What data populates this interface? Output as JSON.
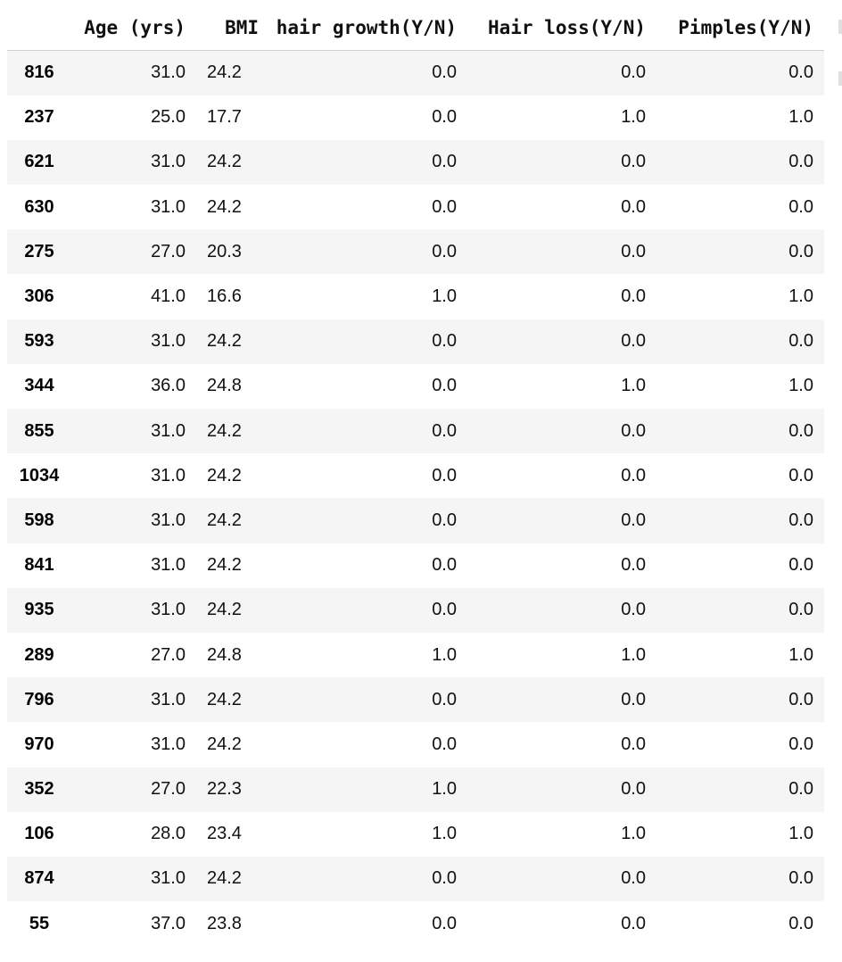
{
  "table": {
    "columns": [
      "",
      "Age (yrs)",
      "BMI",
      "hair growth(Y/N)",
      "Hair loss(Y/N)",
      "Pimples(Y/N)"
    ],
    "rows": [
      {
        "index": "816",
        "age": "31.0",
        "bmi": "24.2",
        "hair_growth": "0.0",
        "hair_loss": "0.0",
        "pimples": "0.0"
      },
      {
        "index": "237",
        "age": "25.0",
        "bmi": "17.7",
        "hair_growth": "0.0",
        "hair_loss": "1.0",
        "pimples": "1.0"
      },
      {
        "index": "621",
        "age": "31.0",
        "bmi": "24.2",
        "hair_growth": "0.0",
        "hair_loss": "0.0",
        "pimples": "0.0"
      },
      {
        "index": "630",
        "age": "31.0",
        "bmi": "24.2",
        "hair_growth": "0.0",
        "hair_loss": "0.0",
        "pimples": "0.0"
      },
      {
        "index": "275",
        "age": "27.0",
        "bmi": "20.3",
        "hair_growth": "0.0",
        "hair_loss": "0.0",
        "pimples": "0.0"
      },
      {
        "index": "306",
        "age": "41.0",
        "bmi": "16.6",
        "hair_growth": "1.0",
        "hair_loss": "0.0",
        "pimples": "1.0"
      },
      {
        "index": "593",
        "age": "31.0",
        "bmi": "24.2",
        "hair_growth": "0.0",
        "hair_loss": "0.0",
        "pimples": "0.0"
      },
      {
        "index": "344",
        "age": "36.0",
        "bmi": "24.8",
        "hair_growth": "0.0",
        "hair_loss": "1.0",
        "pimples": "1.0"
      },
      {
        "index": "855",
        "age": "31.0",
        "bmi": "24.2",
        "hair_growth": "0.0",
        "hair_loss": "0.0",
        "pimples": "0.0"
      },
      {
        "index": "1034",
        "age": "31.0",
        "bmi": "24.2",
        "hair_growth": "0.0",
        "hair_loss": "0.0",
        "pimples": "0.0"
      },
      {
        "index": "598",
        "age": "31.0",
        "bmi": "24.2",
        "hair_growth": "0.0",
        "hair_loss": "0.0",
        "pimples": "0.0"
      },
      {
        "index": "841",
        "age": "31.0",
        "bmi": "24.2",
        "hair_growth": "0.0",
        "hair_loss": "0.0",
        "pimples": "0.0"
      },
      {
        "index": "935",
        "age": "31.0",
        "bmi": "24.2",
        "hair_growth": "0.0",
        "hair_loss": "0.0",
        "pimples": "0.0"
      },
      {
        "index": "289",
        "age": "27.0",
        "bmi": "24.8",
        "hair_growth": "1.0",
        "hair_loss": "1.0",
        "pimples": "1.0"
      },
      {
        "index": "796",
        "age": "31.0",
        "bmi": "24.2",
        "hair_growth": "0.0",
        "hair_loss": "0.0",
        "pimples": "0.0"
      },
      {
        "index": "970",
        "age": "31.0",
        "bmi": "24.2",
        "hair_growth": "0.0",
        "hair_loss": "0.0",
        "pimples": "0.0"
      },
      {
        "index": "352",
        "age": "27.0",
        "bmi": "22.3",
        "hair_growth": "1.0",
        "hair_loss": "0.0",
        "pimples": "0.0"
      },
      {
        "index": "106",
        "age": "28.0",
        "bmi": "23.4",
        "hair_growth": "1.0",
        "hair_loss": "1.0",
        "pimples": "1.0"
      },
      {
        "index": "874",
        "age": "31.0",
        "bmi": "24.2",
        "hair_growth": "0.0",
        "hair_loss": "0.0",
        "pimples": "0.0"
      },
      {
        "index": "55",
        "age": "37.0",
        "bmi": "23.8",
        "hair_growth": "0.0",
        "hair_loss": "0.0",
        "pimples": "0.0"
      }
    ]
  },
  "colors": {
    "row_stripe": "#f5f5f5",
    "header_border": "#cfcfcf"
  }
}
